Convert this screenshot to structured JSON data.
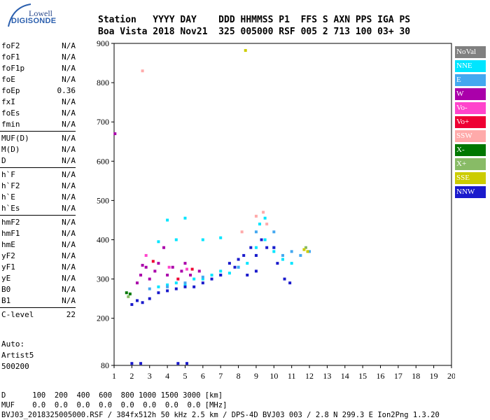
{
  "logo": {
    "top": "Lowell",
    "brand": "DIGISONDE"
  },
  "header": {
    "line1": "Station   YYYY DAY    DDD HHMMSS P1  FFS S AXN PPS IGA PS",
    "line2": "Boa Vista 2018 Nov21  325 005000 RSF 005 2 713 100 03+ 30"
  },
  "params": [
    {
      "name": "foF2",
      "value": "N/A"
    },
    {
      "name": "foF1",
      "value": "N/A"
    },
    {
      "name": "foF1p",
      "value": "N/A"
    },
    {
      "name": "foE",
      "value": "N/A"
    },
    {
      "name": "foEp",
      "value": "0.36"
    },
    {
      "name": "fxI",
      "value": "N/A"
    },
    {
      "name": "foEs",
      "value": "N/A"
    },
    {
      "name": "fmin",
      "value": "N/A"
    },
    {
      "sep": true
    },
    {
      "name": "MUF(D)",
      "value": "N/A"
    },
    {
      "name": "M(D)",
      "value": "N/A"
    },
    {
      "name": "D",
      "value": "N/A"
    },
    {
      "sep": true
    },
    {
      "name": "h`F",
      "value": "N/A"
    },
    {
      "name": "h`F2",
      "value": "N/A"
    },
    {
      "name": "h`E",
      "value": "N/A"
    },
    {
      "name": "h`Es",
      "value": "N/A"
    },
    {
      "sep": true
    },
    {
      "name": "hmF2",
      "value": "N/A"
    },
    {
      "name": "hmF1",
      "value": "N/A"
    },
    {
      "name": "hmE",
      "value": "N/A"
    },
    {
      "name": "yF2",
      "value": "N/A"
    },
    {
      "name": "yF1",
      "value": "N/A"
    },
    {
      "name": "yE",
      "value": "N/A"
    },
    {
      "name": "B0",
      "value": "N/A"
    },
    {
      "name": "B1",
      "value": "N/A"
    },
    {
      "sep": true
    },
    {
      "name": "C-level",
      "value": "22"
    }
  ],
  "auto": {
    "line1": "Auto:",
    "line2": "Artist5",
    "line3": "500200"
  },
  "footer": {
    "line1": "D      100  200  400  600  800 1000 1500 3000 [km]",
    "line2": "MUF    0.0  0.0  0.0  0.0  0.0  0.0  0.0  0.0 [MHz]",
    "line3": "BVJ03_2018325005000.RSF / 384fx512h 50 kHz 2.5 km / DPS-4D BVJ03 003 / 2.8 N 299.3 E Ion2Png 1.3.20"
  },
  "legend": [
    {
      "label": "NoVal",
      "color": "#808080"
    },
    {
      "label": "NNE",
      "color": "#00e5ff"
    },
    {
      "label": "E",
      "color": "#44a8f0"
    },
    {
      "label": "W",
      "color": "#aa00aa"
    },
    {
      "label": "Vo-",
      "color": "#ff44cc"
    },
    {
      "label": "Vo+",
      "color": "#ee0033"
    },
    {
      "label": "SSW",
      "color": "#ffaaaa"
    },
    {
      "label": "X-",
      "color": "#007700"
    },
    {
      "label": "X+",
      "color": "#88bb66"
    },
    {
      "label": "SSE",
      "color": "#cccc00"
    },
    {
      "label": "NNW",
      "color": "#1a1acc"
    }
  ],
  "chart_data": {
    "type": "scatter",
    "xlabel": "",
    "ylabel": "",
    "xlim": [
      1,
      20
    ],
    "ylim": [
      80,
      900
    ],
    "xticks": [
      1,
      2,
      3,
      4,
      5,
      6,
      7,
      8,
      9,
      10,
      11,
      12,
      13,
      14,
      15,
      16,
      17,
      18,
      19,
      20
    ],
    "yticks": [
      80,
      200,
      300,
      400,
      500,
      600,
      700,
      800,
      900
    ],
    "grid": false,
    "legend_position": "right",
    "series": [
      {
        "name": "NNE",
        "color": "#00e5ff",
        "points": [
          [
            3.5,
            280
          ],
          [
            4.0,
            285
          ],
          [
            4.5,
            290
          ],
          [
            5.0,
            285
          ],
          [
            5.5,
            300
          ],
          [
            6.0,
            300
          ],
          [
            6.5,
            310
          ],
          [
            7.0,
            320
          ],
          [
            7.5,
            315
          ],
          [
            8.0,
            330
          ],
          [
            8.5,
            340
          ],
          [
            9.0,
            380
          ],
          [
            9.5,
            400
          ],
          [
            10.0,
            370
          ],
          [
            10.5,
            350
          ],
          [
            11.0,
            340
          ],
          [
            4.0,
            450
          ],
          [
            5.0,
            455
          ],
          [
            3.5,
            395
          ],
          [
            4.5,
            400
          ],
          [
            6.0,
            400
          ],
          [
            7.0,
            405
          ],
          [
            9.2,
            440
          ],
          [
            9.5,
            455
          ]
        ]
      },
      {
        "name": "E",
        "color": "#44a8f0",
        "points": [
          [
            3.0,
            275
          ],
          [
            4.0,
            280
          ],
          [
            5.0,
            290
          ],
          [
            6.0,
            305
          ],
          [
            7.0,
            310
          ],
          [
            8.0,
            330
          ],
          [
            9.0,
            360
          ],
          [
            10.0,
            380
          ],
          [
            10.5,
            360
          ],
          [
            11.0,
            370
          ],
          [
            11.5,
            360
          ],
          [
            12.0,
            370
          ],
          [
            9.0,
            420
          ],
          [
            10.0,
            420
          ]
        ]
      },
      {
        "name": "W",
        "color": "#aa00aa",
        "points": [
          [
            2.3,
            290
          ],
          [
            2.5,
            310
          ],
          [
            2.8,
            330
          ],
          [
            3.0,
            300
          ],
          [
            3.3,
            320
          ],
          [
            3.5,
            340
          ],
          [
            4.0,
            310
          ],
          [
            4.3,
            330
          ],
          [
            4.8,
            320
          ],
          [
            5.0,
            340
          ],
          [
            5.3,
            310
          ],
          [
            5.8,
            320
          ],
          [
            3.8,
            380
          ],
          [
            2.6,
            335
          ],
          [
            1.05,
            670
          ]
        ]
      },
      {
        "name": "Vo-",
        "color": "#ff44cc",
        "points": [
          [
            2.8,
            360
          ],
          [
            4.1,
            330
          ],
          [
            5.1,
            325
          ]
        ]
      },
      {
        "name": "Vo+",
        "color": "#ee0033",
        "points": [
          [
            3.2,
            345
          ],
          [
            4.6,
            300
          ],
          [
            5.4,
            325
          ]
        ]
      },
      {
        "name": "SSW",
        "color": "#ffaaaa",
        "points": [
          [
            2.6,
            830
          ],
          [
            8.2,
            420
          ],
          [
            9.0,
            460
          ],
          [
            9.4,
            470
          ],
          [
            9.6,
            440
          ]
        ]
      },
      {
        "name": "X-",
        "color": "#007700",
        "points": [
          [
            1.7,
            265
          ],
          [
            1.9,
            262
          ]
        ]
      },
      {
        "name": "X+",
        "color": "#88bb66",
        "points": [
          [
            1.8,
            255
          ],
          [
            11.8,
            380
          ]
        ]
      },
      {
        "name": "SSE",
        "color": "#cccc00",
        "points": [
          [
            8.4,
            882
          ],
          [
            11.7,
            375
          ],
          [
            11.9,
            370
          ]
        ]
      },
      {
        "name": "NNW",
        "color": "#1a1acc",
        "points": [
          [
            2.0,
            235
          ],
          [
            2.3,
            245
          ],
          [
            2.6,
            240
          ],
          [
            3.0,
            250
          ],
          [
            3.5,
            265
          ],
          [
            4.0,
            270
          ],
          [
            4.5,
            275
          ],
          [
            5.0,
            280
          ],
          [
            5.5,
            280
          ],
          [
            6.0,
            290
          ],
          [
            6.5,
            300
          ],
          [
            7.0,
            310
          ],
          [
            7.5,
            340
          ],
          [
            7.8,
            330
          ],
          [
            8.0,
            350
          ],
          [
            8.3,
            360
          ],
          [
            8.7,
            380
          ],
          [
            9.0,
            360
          ],
          [
            9.3,
            400
          ],
          [
            9.6,
            380
          ],
          [
            10.0,
            380
          ],
          [
            9.0,
            320
          ],
          [
            8.5,
            310
          ],
          [
            10.2,
            340
          ],
          [
            10.9,
            290
          ],
          [
            10.6,
            300
          ],
          [
            2.0,
            85
          ],
          [
            2.5,
            85
          ],
          [
            4.6,
            85
          ],
          [
            5.1,
            85
          ]
        ]
      }
    ]
  }
}
